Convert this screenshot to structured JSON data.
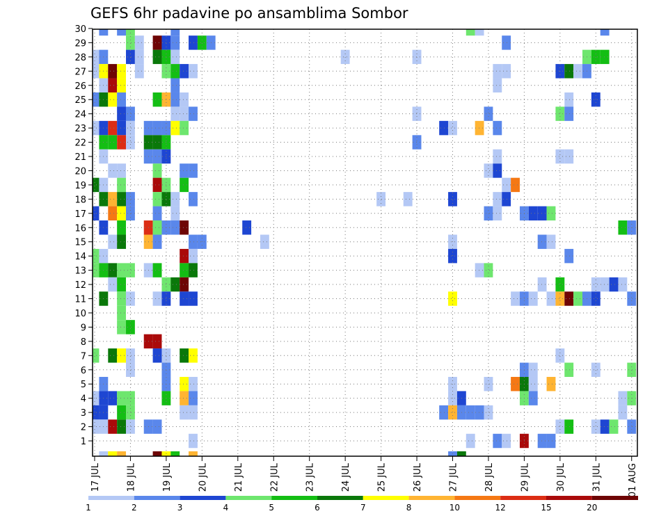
{
  "chart_data": {
    "type": "heatmap",
    "title": "GEFS 6hr padavine po ansamblima Sombor",
    "xlabel": "",
    "ylabel": "",
    "x_ticks": [
      "17 JUL",
      "18 JUL",
      "19 JUL",
      "20 JUL",
      "21 JUL",
      "22 JUL",
      "23 JUL",
      "24 JUL",
      "25 JUL",
      "26 JUL",
      "27 JUL",
      "28 JUL",
      "29 JUL",
      "30 JUL",
      "31 JUL",
      "01 AUG"
    ],
    "y_ticks": [
      "1",
      "2",
      "3",
      "4",
      "5",
      "6",
      "7",
      "8",
      "9",
      "10",
      "11",
      "12",
      "13",
      "14",
      "15",
      "16",
      "17",
      "18",
      "19",
      "20",
      "21",
      "22",
      "23",
      "24",
      "25",
      "26",
      "27",
      "28",
      "29",
      "30"
    ],
    "grid": true,
    "steps_per_day": 4,
    "colorbar": {
      "labels": [
        "1",
        "2",
        "3",
        "4",
        "5",
        "6",
        "7",
        "8",
        "10",
        "12",
        "15",
        "20"
      ],
      "bins": [
        {
          "from": 1,
          "to": 2,
          "color": "#b4c8f5"
        },
        {
          "from": 2,
          "to": 3,
          "color": "#5a87eb"
        },
        {
          "from": 3,
          "to": 4,
          "color": "#1e46d2"
        },
        {
          "from": 4,
          "to": 5,
          "color": "#6ee66e"
        },
        {
          "from": 5,
          "to": 6,
          "color": "#14be14"
        },
        {
          "from": 6,
          "to": 7,
          "color": "#0a780a"
        },
        {
          "from": 7,
          "to": 8,
          "color": "#ffff00"
        },
        {
          "from": 8,
          "to": 10,
          "color": "#ffb432"
        },
        {
          "from": 10,
          "to": 12,
          "color": "#f57814"
        },
        {
          "from": 12,
          "to": 15,
          "color": "#dc2d14"
        },
        {
          "from": 15,
          "to": 20,
          "color": "#aa0a0a"
        },
        {
          "from": 20,
          "to": null,
          "color": "#6e0505"
        }
      ]
    },
    "cells": [
      [
        30,
        1,
        2
      ],
      [
        30,
        3,
        2
      ],
      [
        30,
        4,
        4
      ],
      [
        30,
        9,
        2
      ],
      [
        30,
        42,
        4
      ],
      [
        30,
        43,
        1
      ],
      [
        30,
        57,
        2
      ],
      [
        29,
        4,
        4
      ],
      [
        29,
        5,
        1
      ],
      [
        29,
        7,
        20
      ],
      [
        29,
        8,
        3
      ],
      [
        29,
        9,
        2
      ],
      [
        29,
        11,
        3
      ],
      [
        29,
        12,
        5
      ],
      [
        29,
        13,
        2
      ],
      [
        29,
        46,
        2
      ],
      [
        28,
        0,
        1
      ],
      [
        28,
        1,
        2
      ],
      [
        28,
        4,
        3
      ],
      [
        28,
        5,
        1
      ],
      [
        28,
        7,
        6
      ],
      [
        28,
        8,
        5
      ],
      [
        28,
        9,
        1
      ],
      [
        28,
        28,
        1
      ],
      [
        28,
        36,
        1
      ],
      [
        28,
        55,
        4
      ],
      [
        28,
        56,
        5
      ],
      [
        28,
        57,
        5
      ],
      [
        27,
        0,
        1
      ],
      [
        27,
        1,
        7
      ],
      [
        27,
        2,
        20
      ],
      [
        27,
        3,
        7
      ],
      [
        27,
        5,
        1
      ],
      [
        27,
        8,
        4
      ],
      [
        27,
        9,
        5
      ],
      [
        27,
        10,
        3
      ],
      [
        27,
        11,
        1
      ],
      [
        27,
        45,
        1
      ],
      [
        27,
        46,
        1
      ],
      [
        27,
        52,
        3
      ],
      [
        27,
        53,
        6
      ],
      [
        27,
        54,
        1
      ],
      [
        27,
        55,
        2
      ],
      [
        26,
        1,
        1
      ],
      [
        26,
        2,
        15
      ],
      [
        26,
        3,
        7
      ],
      [
        26,
        9,
        2
      ],
      [
        26,
        45,
        1
      ],
      [
        25,
        0,
        2
      ],
      [
        25,
        1,
        6
      ],
      [
        25,
        2,
        7
      ],
      [
        25,
        3,
        2
      ],
      [
        25,
        7,
        5
      ],
      [
        25,
        8,
        8
      ],
      [
        25,
        9,
        2
      ],
      [
        25,
        10,
        1
      ],
      [
        25,
        53,
        1
      ],
      [
        25,
        56,
        3
      ],
      [
        24,
        3,
        3
      ],
      [
        24,
        4,
        2
      ],
      [
        24,
        9,
        1
      ],
      [
        24,
        10,
        1
      ],
      [
        24,
        11,
        2
      ],
      [
        24,
        36,
        1
      ],
      [
        24,
        44,
        2
      ],
      [
        24,
        52,
        4
      ],
      [
        24,
        53,
        2
      ],
      [
        23,
        0,
        1
      ],
      [
        23,
        1,
        3
      ],
      [
        23,
        2,
        12
      ],
      [
        23,
        3,
        3
      ],
      [
        23,
        4,
        1
      ],
      [
        23,
        6,
        2
      ],
      [
        23,
        7,
        2
      ],
      [
        23,
        8,
        2
      ],
      [
        23,
        9,
        7
      ],
      [
        23,
        10,
        4
      ],
      [
        23,
        39,
        3
      ],
      [
        23,
        40,
        1
      ],
      [
        23,
        43,
        8
      ],
      [
        23,
        45,
        2
      ],
      [
        22,
        1,
        5
      ],
      [
        22,
        2,
        5
      ],
      [
        22,
        3,
        12
      ],
      [
        22,
        4,
        1
      ],
      [
        22,
        6,
        6
      ],
      [
        22,
        7,
        6
      ],
      [
        22,
        8,
        5
      ],
      [
        22,
        36,
        2
      ],
      [
        21,
        1,
        1
      ],
      [
        21,
        6,
        2
      ],
      [
        21,
        7,
        2
      ],
      [
        21,
        8,
        3
      ],
      [
        21,
        45,
        1
      ],
      [
        21,
        52,
        1
      ],
      [
        21,
        53,
        1
      ],
      [
        20,
        2,
        1
      ],
      [
        20,
        3,
        1
      ],
      [
        20,
        7,
        4
      ],
      [
        20,
        10,
        2
      ],
      [
        20,
        11,
        2
      ],
      [
        20,
        44,
        1
      ],
      [
        20,
        45,
        3
      ],
      [
        19,
        0,
        6
      ],
      [
        19,
        1,
        1
      ],
      [
        19,
        3,
        4
      ],
      [
        19,
        7,
        15
      ],
      [
        19,
        8,
        4
      ],
      [
        19,
        10,
        5
      ],
      [
        19,
        46,
        1
      ],
      [
        19,
        47,
        10
      ],
      [
        18,
        1,
        6
      ],
      [
        18,
        2,
        8
      ],
      [
        18,
        3,
        6
      ],
      [
        18,
        4,
        2
      ],
      [
        18,
        7,
        4
      ],
      [
        18,
        8,
        6
      ],
      [
        18,
        9,
        1
      ],
      [
        18,
        11,
        2
      ],
      [
        18,
        32,
        1
      ],
      [
        18,
        35,
        1
      ],
      [
        18,
        40,
        3
      ],
      [
        18,
        45,
        1
      ],
      [
        18,
        46,
        3
      ],
      [
        17,
        0,
        3
      ],
      [
        17,
        2,
        10
      ],
      [
        17,
        3,
        7
      ],
      [
        17,
        4,
        2
      ],
      [
        17,
        7,
        2
      ],
      [
        17,
        9,
        1
      ],
      [
        17,
        44,
        2
      ],
      [
        17,
        45,
        1
      ],
      [
        17,
        48,
        2
      ],
      [
        17,
        49,
        3
      ],
      [
        17,
        50,
        3
      ],
      [
        17,
        51,
        4
      ],
      [
        16,
        1,
        3
      ],
      [
        16,
        3,
        5
      ],
      [
        16,
        6,
        12
      ],
      [
        16,
        7,
        4
      ],
      [
        16,
        8,
        2
      ],
      [
        16,
        9,
        2
      ],
      [
        16,
        10,
        20
      ],
      [
        16,
        17,
        3
      ],
      [
        16,
        59,
        5
      ],
      [
        16,
        60,
        2
      ],
      [
        15,
        2,
        1
      ],
      [
        15,
        3,
        6
      ],
      [
        15,
        6,
        8
      ],
      [
        15,
        7,
        2
      ],
      [
        15,
        11,
        2
      ],
      [
        15,
        12,
        2
      ],
      [
        15,
        19,
        1
      ],
      [
        15,
        40,
        1
      ],
      [
        15,
        50,
        2
      ],
      [
        15,
        51,
        1
      ],
      [
        14,
        0,
        4
      ],
      [
        14,
        1,
        1
      ],
      [
        14,
        10,
        15
      ],
      [
        14,
        11,
        1
      ],
      [
        14,
        40,
        3
      ],
      [
        14,
        53,
        2
      ],
      [
        13,
        0,
        4
      ],
      [
        13,
        1,
        5
      ],
      [
        13,
        2,
        6
      ],
      [
        13,
        3,
        4
      ],
      [
        13,
        4,
        4
      ],
      [
        13,
        6,
        1
      ],
      [
        13,
        7,
        5
      ],
      [
        13,
        10,
        5
      ],
      [
        13,
        11,
        6
      ],
      [
        13,
        43,
        1
      ],
      [
        13,
        44,
        4
      ],
      [
        12,
        2,
        1
      ],
      [
        12,
        3,
        5
      ],
      [
        12,
        8,
        4
      ],
      [
        12,
        9,
        6
      ],
      [
        12,
        10,
        20
      ],
      [
        12,
        50,
        1
      ],
      [
        12,
        52,
        5
      ],
      [
        12,
        56,
        1
      ],
      [
        12,
        57,
        1
      ],
      [
        12,
        58,
        3
      ],
      [
        12,
        59,
        1
      ],
      [
        11,
        1,
        6
      ],
      [
        11,
        3,
        4
      ],
      [
        11,
        4,
        1
      ],
      [
        11,
        7,
        1
      ],
      [
        11,
        8,
        3
      ],
      [
        11,
        10,
        3
      ],
      [
        11,
        11,
        3
      ],
      [
        11,
        40,
        7
      ],
      [
        11,
        47,
        1
      ],
      [
        11,
        48,
        2
      ],
      [
        11,
        49,
        1
      ],
      [
        11,
        51,
        1
      ],
      [
        11,
        52,
        8
      ],
      [
        11,
        53,
        20
      ],
      [
        11,
        54,
        4
      ],
      [
        11,
        55,
        2
      ],
      [
        11,
        56,
        3
      ],
      [
        11,
        60,
        2
      ],
      [
        10,
        3,
        4
      ],
      [
        9,
        3,
        4
      ],
      [
        9,
        4,
        5
      ],
      [
        8,
        6,
        15
      ],
      [
        8,
        7,
        15
      ],
      [
        7,
        0,
        4
      ],
      [
        7,
        2,
        6
      ],
      [
        7,
        3,
        7
      ],
      [
        7,
        4,
        1
      ],
      [
        7,
        7,
        3
      ],
      [
        7,
        8,
        1
      ],
      [
        7,
        10,
        6
      ],
      [
        7,
        11,
        7
      ],
      [
        7,
        52,
        1
      ],
      [
        6,
        4,
        1
      ],
      [
        6,
        8,
        2
      ],
      [
        6,
        48,
        2
      ],
      [
        6,
        49,
        1
      ],
      [
        6,
        53,
        4
      ],
      [
        6,
        56,
        1
      ],
      [
        6,
        60,
        4
      ],
      [
        5,
        1,
        2
      ],
      [
        5,
        8,
        2
      ],
      [
        5,
        10,
        7
      ],
      [
        5,
        11,
        1
      ],
      [
        5,
        40,
        1
      ],
      [
        5,
        44,
        1
      ],
      [
        5,
        47,
        10
      ],
      [
        5,
        48,
        6
      ],
      [
        5,
        49,
        1
      ],
      [
        5,
        51,
        8
      ],
      [
        4,
        0,
        1
      ],
      [
        4,
        1,
        3
      ],
      [
        4,
        2,
        3
      ],
      [
        4,
        3,
        4
      ],
      [
        4,
        4,
        4
      ],
      [
        4,
        8,
        5
      ],
      [
        4,
        10,
        8
      ],
      [
        4,
        11,
        2
      ],
      [
        4,
        40,
        1
      ],
      [
        4,
        41,
        3
      ],
      [
        4,
        48,
        4
      ],
      [
        4,
        49,
        2
      ],
      [
        4,
        59,
        1
      ],
      [
        4,
        60,
        4
      ],
      [
        3,
        0,
        3
      ],
      [
        3,
        1,
        3
      ],
      [
        3,
        3,
        5
      ],
      [
        3,
        4,
        4
      ],
      [
        3,
        10,
        1
      ],
      [
        3,
        11,
        1
      ],
      [
        3,
        39,
        2
      ],
      [
        3,
        40,
        8
      ],
      [
        3,
        41,
        2
      ],
      [
        3,
        42,
        2
      ],
      [
        3,
        43,
        2
      ],
      [
        3,
        44,
        1
      ],
      [
        3,
        59,
        1
      ],
      [
        2,
        0,
        1
      ],
      [
        2,
        1,
        1
      ],
      [
        2,
        2,
        15
      ],
      [
        2,
        3,
        6
      ],
      [
        2,
        4,
        1
      ],
      [
        2,
        6,
        2
      ],
      [
        2,
        7,
        2
      ],
      [
        2,
        52,
        1
      ],
      [
        2,
        53,
        5
      ],
      [
        2,
        56,
        1
      ],
      [
        2,
        57,
        3
      ],
      [
        2,
        58,
        4
      ],
      [
        2,
        60,
        2
      ],
      [
        1,
        11,
        1
      ],
      [
        1,
        42,
        1
      ],
      [
        1,
        45,
        2
      ],
      [
        1,
        46,
        1
      ],
      [
        1,
        48,
        15
      ],
      [
        1,
        50,
        2
      ],
      [
        1,
        51,
        2
      ]
    ],
    "bottom_cells": [
      [
        1,
        1
      ],
      [
        2,
        7
      ],
      [
        3,
        8
      ],
      [
        7,
        20
      ],
      [
        8,
        7
      ],
      [
        9,
        5
      ],
      [
        11,
        8
      ],
      [
        40,
        2
      ],
      [
        41,
        6
      ]
    ]
  }
}
